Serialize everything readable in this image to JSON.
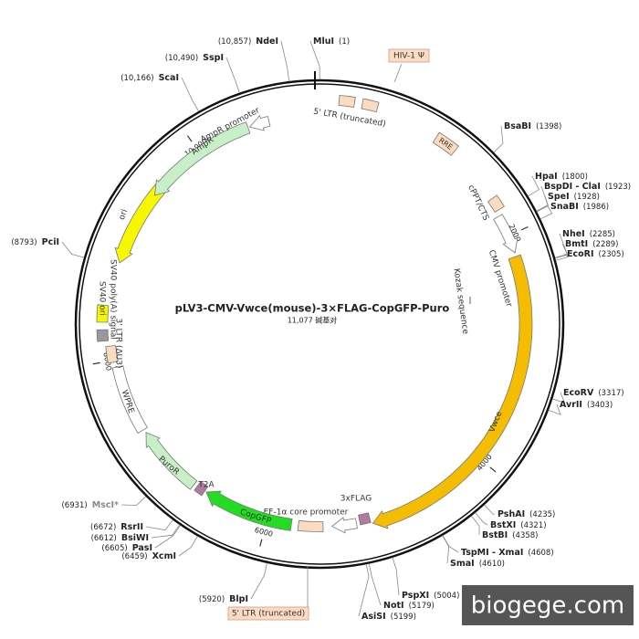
{
  "map": {
    "title": "pLV3-CMV-Vwce(mouse)-3×FLAG-CopGFP-Puro",
    "subtitle": "11,077 碱基对",
    "sites": [
      {
        "name": "MluI",
        "position": "(1)"
      },
      {
        "name": "BsaBI",
        "position": "(1398)"
      },
      {
        "name": "HpaI",
        "position": "(1800)"
      },
      {
        "name": "BspDI - ClaI",
        "position": "(1923)"
      },
      {
        "name": "SpeI",
        "position": "(1928)"
      },
      {
        "name": "SnaBI",
        "position": "(1986)"
      },
      {
        "name": "NheI",
        "position": "(2285)"
      },
      {
        "name": "BmtI",
        "position": "(2289)"
      },
      {
        "name": "EcoRI",
        "position": "(2305)"
      },
      {
        "name": "EcoRV",
        "position": "(3317)"
      },
      {
        "name": "AvrII",
        "position": "(3403)"
      },
      {
        "name": "PshAI",
        "position": "(4235)"
      },
      {
        "name": "BstXI",
        "position": "(4321)"
      },
      {
        "name": "BstBI",
        "position": "(4358)"
      },
      {
        "name": "TspMI - XmaI",
        "position": "(4608)"
      },
      {
        "name": "SmaI",
        "position": "(4610)"
      },
      {
        "name": "PspXI",
        "position": "(5004)"
      },
      {
        "name": "NotI",
        "position": "(5179)"
      },
      {
        "name": "AsiSI",
        "position": "(5199)"
      },
      {
        "name": "BlpI",
        "position": "(5920)"
      },
      {
        "name": "XcmI",
        "position": "(6459)"
      },
      {
        "name": "PasI",
        "position": "(6605)"
      },
      {
        "name": "BsiWI",
        "position": "(6612)"
      },
      {
        "name": "RsrII",
        "position": "(6672)"
      },
      {
        "name": "MscI*",
        "position": "(6931)",
        "color": "#8a8a8a"
      },
      {
        "name": "PciI",
        "position": "(8793)"
      },
      {
        "name": "ScaI",
        "position": "(10,166)"
      },
      {
        "name": "SspI",
        "position": "(10,490)"
      },
      {
        "name": "NdeI",
        "position": "(10,857)"
      }
    ],
    "features": [
      "5' LTR (truncated)",
      "HIV-1 Ψ",
      "RRE",
      "cPPT/CTS",
      "CMV promoter",
      "Kozak sequence",
      "Vwce",
      "3xFLAG",
      "EF-1α core promoter",
      "CopGFP",
      "T2A",
      "PuroR",
      "WPRE",
      "3' LTR (ΔU3)",
      "SV40 poly(A) signal",
      "SV40 ori",
      "ori",
      "AmpR",
      "AmpR promoter"
    ],
    "ticks": [
      2000,
      4000,
      6000,
      8000,
      {
        "value": 10000,
        "label": "10,000"
      }
    ],
    "watermark": "biogege.com"
  }
}
